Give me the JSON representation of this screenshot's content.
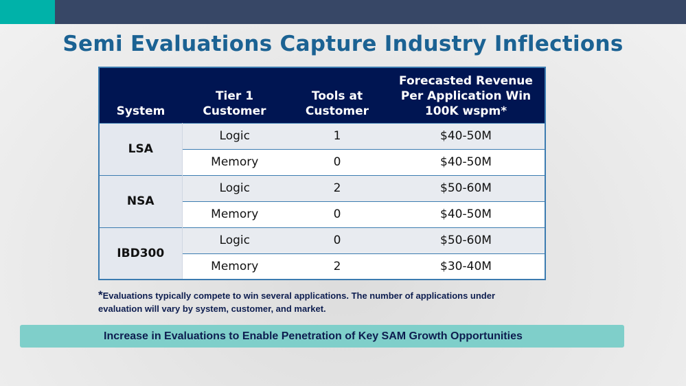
{
  "title": "Semi Evaluations Capture Industry Inflections",
  "table": {
    "headers": [
      "System",
      "Tier 1\nCustomer",
      "Tools at\nCustomer",
      "Forecasted Revenue\nPer Application Win\n100K wspm*"
    ],
    "groups": [
      {
        "system": "LSA",
        "rows": [
          {
            "customer": "Logic",
            "tools": "1",
            "revenue": "$40-50M"
          },
          {
            "customer": "Memory",
            "tools": "0",
            "revenue": "$40-50M"
          }
        ]
      },
      {
        "system": "NSA",
        "rows": [
          {
            "customer": "Logic",
            "tools": "2",
            "revenue": "$50-60M"
          },
          {
            "customer": "Memory",
            "tools": "0",
            "revenue": "$40-50M"
          }
        ]
      },
      {
        "system": "IBD300",
        "rows": [
          {
            "customer": "Logic",
            "tools": "0",
            "revenue": "$50-60M"
          },
          {
            "customer": "Memory",
            "tools": "2",
            "revenue": "$30-40M"
          }
        ]
      }
    ]
  },
  "footnote": {
    "star": "*",
    "text": "Evaluations typically compete to win several applications. The number of applications under evaluation will vary by system, customer, and market."
  },
  "banner": "Increase in Evaluations to Enable Penetration of Key SAM Growth Opportunities"
}
